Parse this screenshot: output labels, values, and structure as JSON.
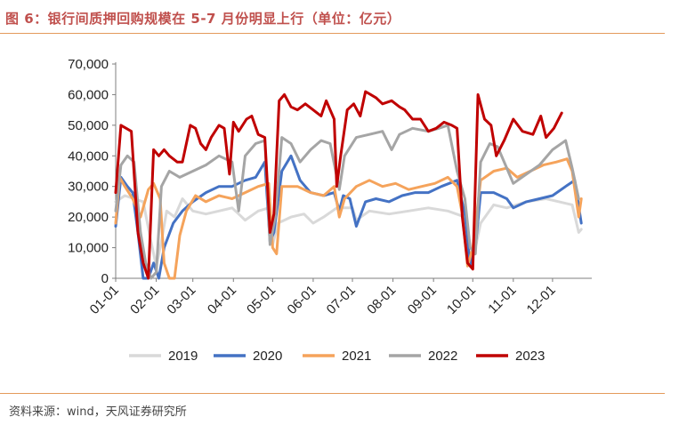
{
  "header": {
    "title": "图 6：银行间质押回购规模在 5-7 月份明显上行（单位：亿元）"
  },
  "footer": {
    "source": "资料来源：wind，天风证券研究所"
  },
  "colors": {
    "accent": "#c0504d",
    "rule": "#e49a5b"
  },
  "chart_data": {
    "type": "line",
    "title": "",
    "xlabel": "",
    "ylabel": "",
    "ylim": [
      0,
      70000
    ],
    "yticks": [
      "0",
      "10,000",
      "20,000",
      "30,000",
      "40,000",
      "50,000",
      "60,000",
      "70,000"
    ],
    "xticks": [
      "01-01",
      "02-01",
      "03-01",
      "04-01",
      "05-01",
      "06-01",
      "07-01",
      "08-01",
      "09-01",
      "10-01",
      "11-01",
      "12-01"
    ],
    "grid": false,
    "legend_position": "bottom",
    "x_unit": "day of year",
    "series": [
      {
        "name": "2019",
        "color": "#d9d9d9",
        "points": [
          [
            1,
            25000
          ],
          [
            8,
            27000
          ],
          [
            15,
            26000
          ],
          [
            22,
            25000
          ],
          [
            28,
            12000
          ],
          [
            32,
            4000
          ],
          [
            36,
            12000
          ],
          [
            40,
            22000
          ],
          [
            46,
            20000
          ],
          [
            52,
            26000
          ],
          [
            60,
            22000
          ],
          [
            70,
            21000
          ],
          [
            80,
            22000
          ],
          [
            90,
            23000
          ],
          [
            95,
            21000
          ],
          [
            100,
            19000
          ],
          [
            110,
            22000
          ],
          [
            118,
            23000
          ],
          [
            121,
            11000
          ],
          [
            125,
            18000
          ],
          [
            135,
            20000
          ],
          [
            145,
            21000
          ],
          [
            152,
            18000
          ],
          [
            160,
            20000
          ],
          [
            170,
            23000
          ],
          [
            182,
            23000
          ],
          [
            185,
            19000
          ],
          [
            195,
            22000
          ],
          [
            210,
            21000
          ],
          [
            225,
            22000
          ],
          [
            240,
            23000
          ],
          [
            255,
            22000
          ],
          [
            268,
            20000
          ],
          [
            272,
            5000
          ],
          [
            276,
            10000
          ],
          [
            280,
            18000
          ],
          [
            290,
            24000
          ],
          [
            300,
            23000
          ],
          [
            315,
            25000
          ],
          [
            330,
            26000
          ],
          [
            340,
            25000
          ],
          [
            350,
            24000
          ],
          [
            355,
            15000
          ],
          [
            357,
            16000
          ]
        ]
      },
      {
        "name": "2020",
        "color": "#4472c4",
        "points": [
          [
            1,
            17000
          ],
          [
            5,
            33000
          ],
          [
            10,
            30000
          ],
          [
            14,
            28000
          ],
          [
            18,
            15000
          ],
          [
            22,
            0
          ],
          [
            26,
            0
          ],
          [
            30,
            5000
          ],
          [
            34,
            0
          ],
          [
            38,
            10000
          ],
          [
            45,
            18000
          ],
          [
            52,
            22000
          ],
          [
            60,
            25000
          ],
          [
            70,
            28000
          ],
          [
            80,
            30000
          ],
          [
            90,
            30000
          ],
          [
            100,
            32000
          ],
          [
            108,
            33000
          ],
          [
            115,
            38000
          ],
          [
            119,
            12000
          ],
          [
            122,
            15000
          ],
          [
            128,
            35000
          ],
          [
            135,
            40000
          ],
          [
            142,
            32000
          ],
          [
            150,
            28000
          ],
          [
            160,
            27000
          ],
          [
            168,
            28000
          ],
          [
            172,
            22000
          ],
          [
            175,
            27000
          ],
          [
            180,
            26000
          ],
          [
            185,
            17000
          ],
          [
            192,
            25000
          ],
          [
            200,
            26000
          ],
          [
            210,
            25000
          ],
          [
            220,
            27000
          ],
          [
            230,
            28000
          ],
          [
            240,
            28000
          ],
          [
            250,
            30000
          ],
          [
            262,
            32000
          ],
          [
            268,
            21000
          ],
          [
            272,
            4000
          ],
          [
            276,
            10000
          ],
          [
            280,
            28000
          ],
          [
            290,
            28000
          ],
          [
            300,
            26000
          ],
          [
            305,
            23000
          ],
          [
            315,
            25000
          ],
          [
            325,
            26000
          ],
          [
            335,
            27000
          ],
          [
            345,
            30000
          ],
          [
            352,
            32000
          ],
          [
            357,
            18000
          ]
        ]
      },
      {
        "name": "2021",
        "color": "#f5a35b",
        "points": [
          [
            1,
            18000
          ],
          [
            4,
            33000
          ],
          [
            8,
            30000
          ],
          [
            14,
            26000
          ],
          [
            20,
            20000
          ],
          [
            26,
            29000
          ],
          [
            30,
            31000
          ],
          [
            35,
            26000
          ],
          [
            38,
            5000
          ],
          [
            42,
            0
          ],
          [
            46,
            0
          ],
          [
            50,
            14000
          ],
          [
            55,
            22000
          ],
          [
            62,
            27000
          ],
          [
            70,
            25000
          ],
          [
            80,
            27000
          ],
          [
            90,
            26000
          ],
          [
            100,
            28000
          ],
          [
            110,
            30000
          ],
          [
            118,
            31000
          ],
          [
            121,
            10000
          ],
          [
            124,
            8000
          ],
          [
            128,
            30000
          ],
          [
            140,
            30000
          ],
          [
            150,
            28000
          ],
          [
            160,
            27000
          ],
          [
            168,
            30000
          ],
          [
            172,
            20000
          ],
          [
            176,
            26000
          ],
          [
            185,
            30000
          ],
          [
            195,
            32000
          ],
          [
            205,
            30000
          ],
          [
            215,
            31000
          ],
          [
            225,
            29000
          ],
          [
            235,
            30000
          ],
          [
            245,
            31000
          ],
          [
            255,
            33000
          ],
          [
            262,
            30000
          ],
          [
            266,
            21000
          ],
          [
            270,
            4000
          ],
          [
            274,
            10000
          ],
          [
            280,
            32000
          ],
          [
            290,
            35000
          ],
          [
            300,
            36000
          ],
          [
            308,
            33000
          ],
          [
            318,
            35000
          ],
          [
            328,
            37000
          ],
          [
            338,
            38000
          ],
          [
            346,
            39000
          ],
          [
            350,
            35000
          ],
          [
            355,
            20000
          ],
          [
            357,
            26000
          ]
        ]
      },
      {
        "name": "2022",
        "color": "#a5a5a5",
        "points": [
          [
            1,
            22000
          ],
          [
            5,
            37000
          ],
          [
            10,
            40000
          ],
          [
            15,
            38000
          ],
          [
            20,
            15000
          ],
          [
            24,
            5000
          ],
          [
            28,
            0
          ],
          [
            32,
            2000
          ],
          [
            36,
            30000
          ],
          [
            42,
            35000
          ],
          [
            50,
            33000
          ],
          [
            60,
            35000
          ],
          [
            70,
            37000
          ],
          [
            80,
            40000
          ],
          [
            90,
            38000
          ],
          [
            95,
            22000
          ],
          [
            100,
            40000
          ],
          [
            108,
            44000
          ],
          [
            115,
            45000
          ],
          [
            119,
            11000
          ],
          [
            123,
            20000
          ],
          [
            128,
            46000
          ],
          [
            135,
            44000
          ],
          [
            142,
            38000
          ],
          [
            150,
            42000
          ],
          [
            158,
            45000
          ],
          [
            165,
            44000
          ],
          [
            172,
            29000
          ],
          [
            176,
            40000
          ],
          [
            185,
            46000
          ],
          [
            195,
            47000
          ],
          [
            205,
            48000
          ],
          [
            212,
            42000
          ],
          [
            218,
            47000
          ],
          [
            228,
            49000
          ],
          [
            240,
            48000
          ],
          [
            248,
            49000
          ],
          [
            255,
            50000
          ],
          [
            262,
            35000
          ],
          [
            268,
            26000
          ],
          [
            272,
            10000
          ],
          [
            276,
            8000
          ],
          [
            280,
            38000
          ],
          [
            287,
            44000
          ],
          [
            293,
            43000
          ],
          [
            300,
            36000
          ],
          [
            305,
            31000
          ],
          [
            315,
            34000
          ],
          [
            325,
            37000
          ],
          [
            335,
            42000
          ],
          [
            345,
            45000
          ],
          [
            350,
            36000
          ],
          [
            355,
            26000
          ]
        ]
      },
      {
        "name": "2023",
        "color": "#c00000",
        "points": [
          [
            1,
            28000
          ],
          [
            5,
            50000
          ],
          [
            9,
            49000
          ],
          [
            13,
            48000
          ],
          [
            18,
            15000
          ],
          [
            22,
            5000
          ],
          [
            26,
            0
          ],
          [
            30,
            42000
          ],
          [
            34,
            40000
          ],
          [
            38,
            42000
          ],
          [
            42,
            40000
          ],
          [
            48,
            38000
          ],
          [
            52,
            38000
          ],
          [
            58,
            50000
          ],
          [
            62,
            49000
          ],
          [
            66,
            44000
          ],
          [
            70,
            42000
          ],
          [
            74,
            46000
          ],
          [
            80,
            50000
          ],
          [
            84,
            49000
          ],
          [
            88,
            34000
          ],
          [
            91,
            51000
          ],
          [
            95,
            48000
          ],
          [
            101,
            52000
          ],
          [
            105,
            53000
          ],
          [
            110,
            47000
          ],
          [
            115,
            46000
          ],
          [
            119,
            15000
          ],
          [
            122,
            21000
          ],
          [
            126,
            58000
          ],
          [
            130,
            60000
          ],
          [
            135,
            56000
          ],
          [
            140,
            55000
          ],
          [
            146,
            57000
          ],
          [
            152,
            55000
          ],
          [
            158,
            53000
          ],
          [
            162,
            58000
          ],
          [
            168,
            52000
          ],
          [
            170,
            30000
          ],
          [
            173,
            40000
          ],
          [
            178,
            55000
          ],
          [
            183,
            57000
          ],
          [
            188,
            53000
          ],
          [
            192,
            61000
          ],
          [
            196,
            60000
          ],
          [
            200,
            59000
          ],
          [
            205,
            57000
          ],
          [
            212,
            58000
          ],
          [
            218,
            56000
          ],
          [
            222,
            55000
          ],
          [
            228,
            52000
          ],
          [
            234,
            52000
          ],
          [
            240,
            48000
          ],
          [
            246,
            49000
          ],
          [
            252,
            51000
          ],
          [
            258,
            50000
          ],
          [
            262,
            49000
          ],
          [
            266,
            20000
          ],
          [
            270,
            5000
          ],
          [
            274,
            3000
          ],
          [
            278,
            60000
          ],
          [
            283,
            52000
          ],
          [
            288,
            50000
          ],
          [
            292,
            40000
          ],
          [
            298,
            45000
          ],
          [
            305,
            52000
          ],
          [
            312,
            48000
          ],
          [
            320,
            47000
          ],
          [
            326,
            53000
          ],
          [
            330,
            46000
          ],
          [
            336,
            49000
          ],
          [
            342,
            54000
          ]
        ]
      }
    ]
  }
}
